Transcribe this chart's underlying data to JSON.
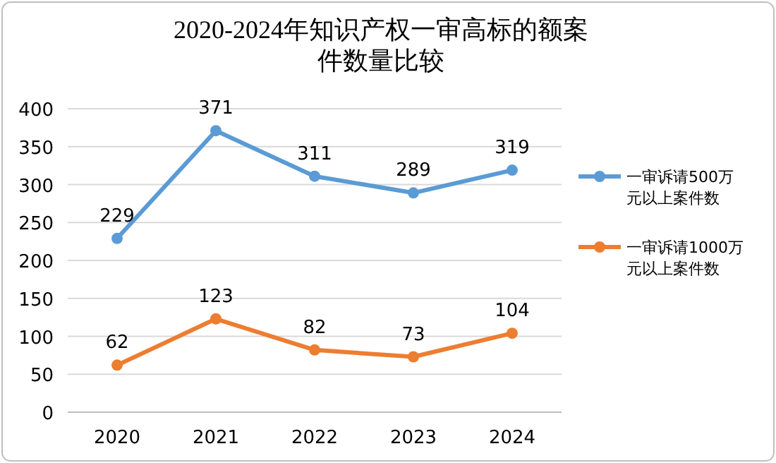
{
  "chart_data": {
    "type": "line",
    "title": "2020-2024年知识产权一审高标的额案件数量比较",
    "categories": [
      "2020",
      "2021",
      "2022",
      "2023",
      "2024"
    ],
    "series": [
      {
        "name": "一审诉请500万元以上案件数",
        "color": "#5b9bd5",
        "values": [
          229,
          371,
          311,
          289,
          319
        ]
      },
      {
        "name": "一审诉请1000万元以上案件数",
        "color": "#ed7d31",
        "values": [
          62,
          123,
          82,
          73,
          104
        ]
      }
    ],
    "ylim": [
      0,
      400
    ],
    "yticks": [
      0,
      50,
      100,
      150,
      200,
      250,
      300,
      350,
      400
    ],
    "grid": "y",
    "legend": "right",
    "marker": "circle",
    "line_style": "solid",
    "data_labels": true
  }
}
